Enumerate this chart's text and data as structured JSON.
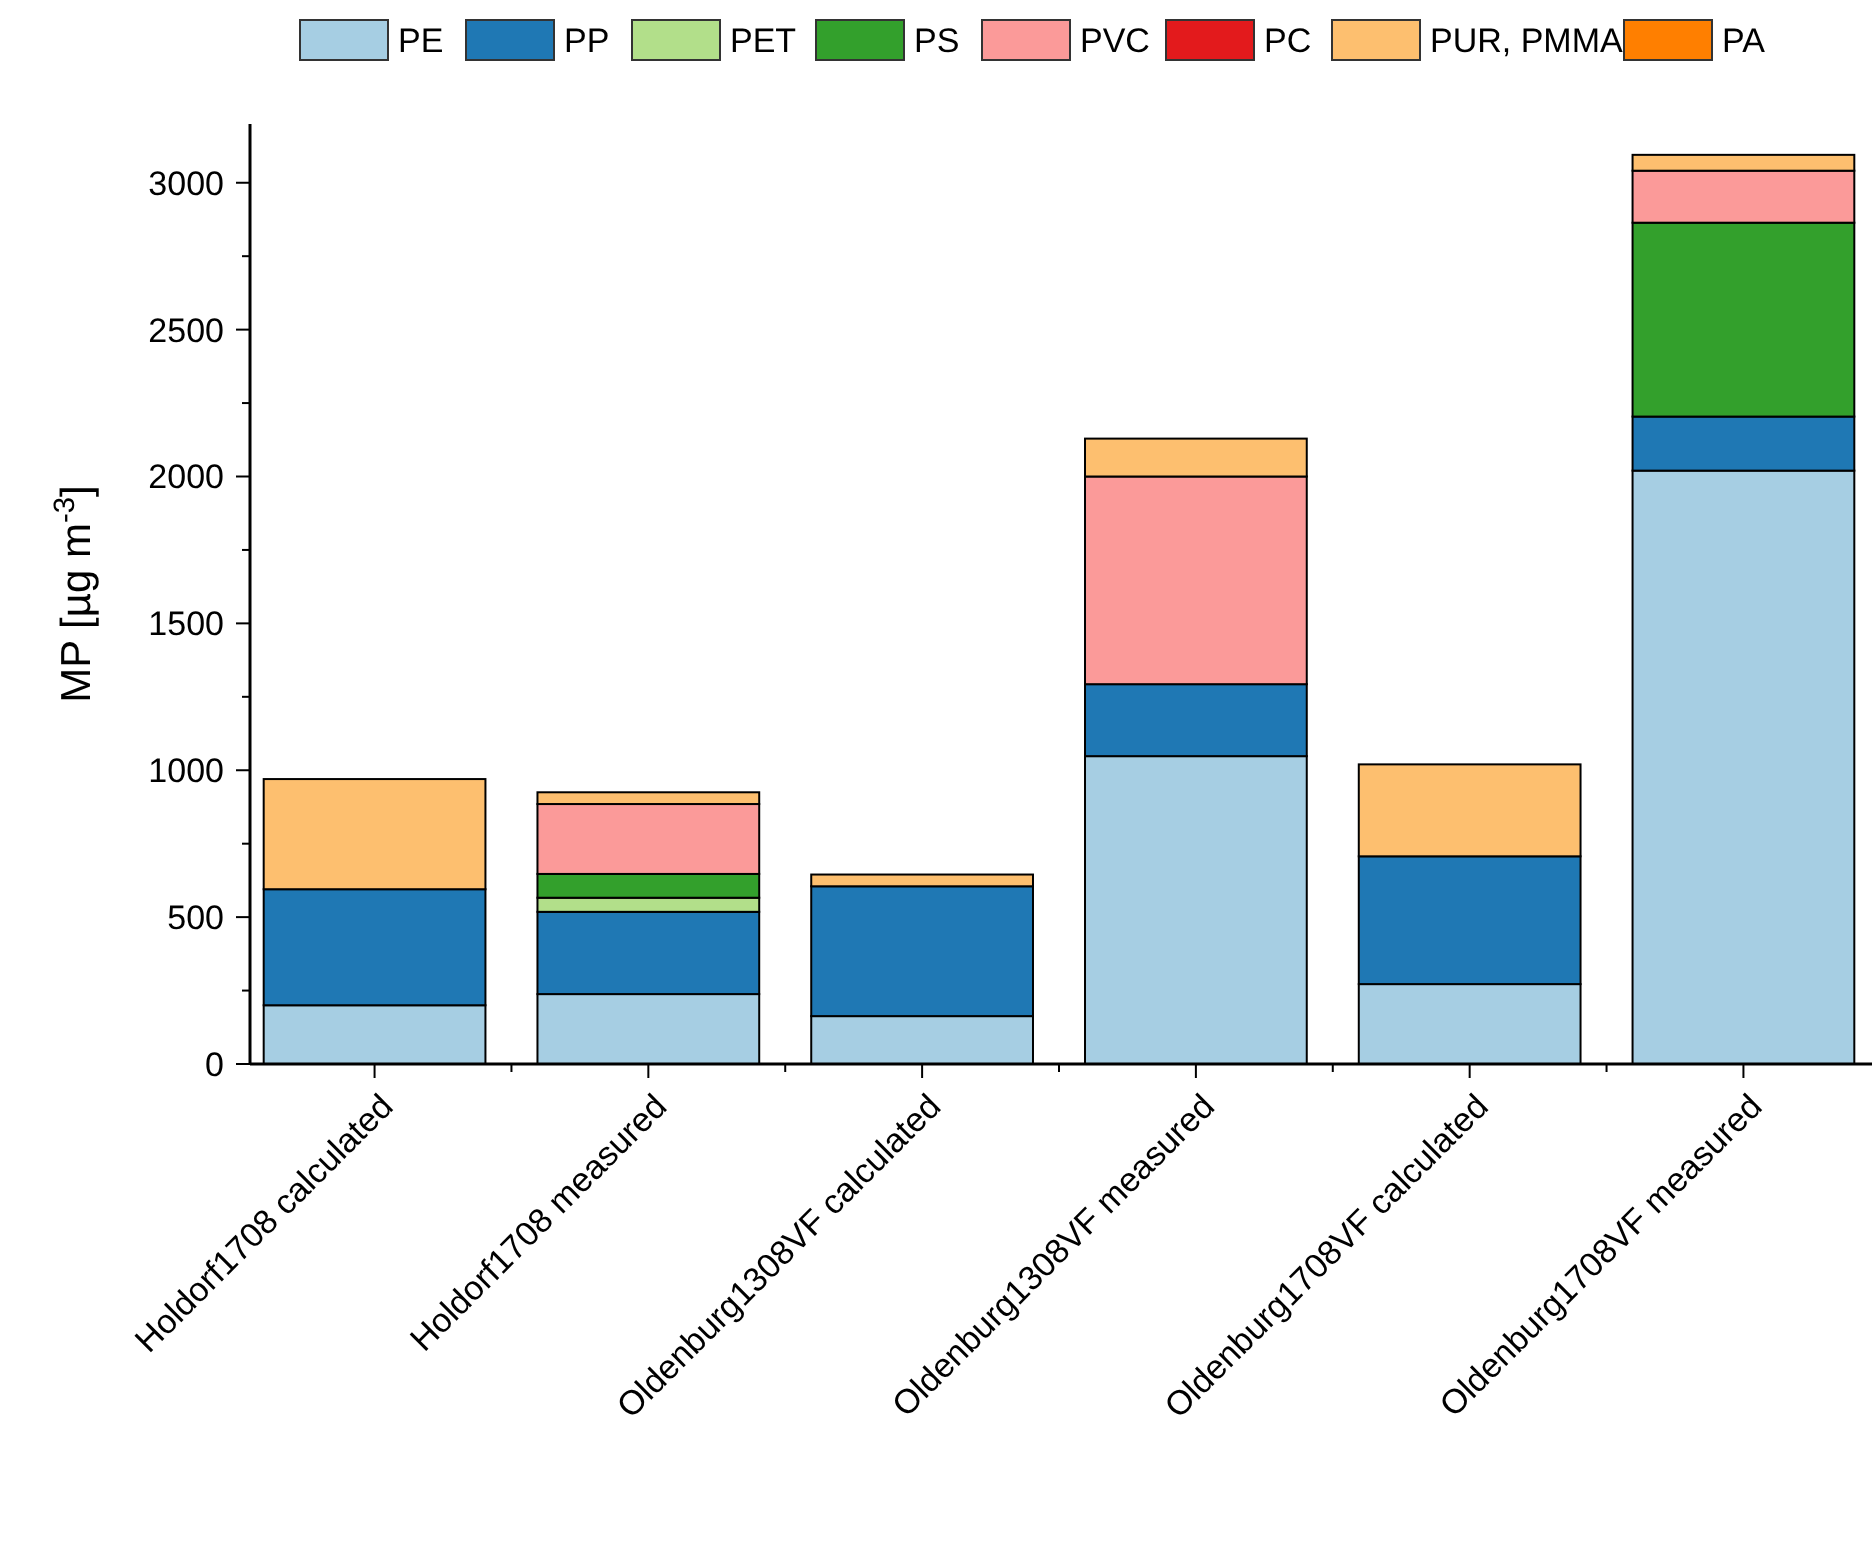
{
  "chart_data": {
    "type": "bar",
    "stacked": true,
    "ylabel": "MP [µg m$^{-3}$]",
    "legend": "top",
    "categories": [
      "Holdorf1708 calculated",
      "Holdorf1708 measured",
      "Oldenburg1308VF calculated",
      "Oldenburg1308VF measured",
      "Oldenburg1708VF calculated",
      "Oldenburg1708VF measured"
    ],
    "series": [
      {
        "name": "PE",
        "color": "#a6cee3",
        "values": [
          200,
          238,
          163,
          1048,
          272,
          2020
        ]
      },
      {
        "name": "PP",
        "color": "#1f78b4",
        "values": [
          395,
          280,
          442,
          245,
          435,
          184
        ]
      },
      {
        "name": "PET",
        "color": "#b2df8a",
        "values": [
          0,
          48,
          0,
          0,
          0,
          0
        ]
      },
      {
        "name": "PS",
        "color": "#33a02c",
        "values": [
          0,
          81,
          0,
          0,
          0,
          660
        ]
      },
      {
        "name": "PVC",
        "color": "#fb9a99",
        "values": [
          0,
          238,
          0,
          707,
          0,
          177
        ]
      },
      {
        "name": "PC",
        "color": "#e31a1c",
        "values": [
          0,
          0,
          0,
          0,
          0,
          0
        ]
      },
      {
        "name": "PUR, PMMA",
        "color": "#fdbf6f",
        "values": [
          375,
          40,
          40,
          129,
          313,
          54
        ]
      },
      {
        "name": "PA",
        "color": "#ff7f00",
        "values": [
          0,
          0,
          0,
          0,
          0,
          0
        ]
      }
    ],
    "ylim": [
      0,
      3200
    ],
    "yticks": [
      0,
      {
        "value": 250,
        "label": null
      },
      500,
      {
        "value": 750,
        "label": null
      },
      1000,
      {
        "value": 1250,
        "label": null
      },
      1500,
      {
        "value": 1750,
        "label": null
      },
      2000,
      {
        "value": 2250,
        "label": null
      },
      2500,
      {
        "value": 2750,
        "label": null
      },
      3000
    ],
    "grid": false
  }
}
